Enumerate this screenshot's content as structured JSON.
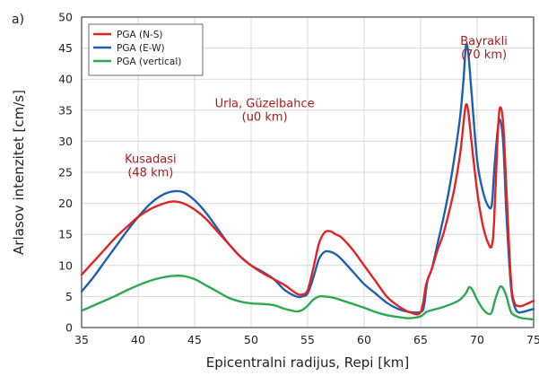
{
  "chart_data": {
    "type": "line",
    "panel_label": "a)",
    "title": "",
    "xlabel": "Epicentralni radijus, Repi [km]",
    "ylabel": "Arlasov intenzitet [cm/s]",
    "xlim": [
      35,
      75
    ],
    "ylim": [
      0,
      50
    ],
    "xticks": [
      35,
      40,
      45,
      50,
      55,
      60,
      65,
      70,
      75
    ],
    "yticks": [
      0,
      5,
      10,
      15,
      20,
      25,
      30,
      35,
      40,
      45,
      50
    ],
    "grid": true,
    "legend_position": "top-left",
    "series": [
      {
        "name": "PGA (N-S)",
        "color": "#e02424",
        "x": [
          35,
          36,
          37,
          38,
          39,
          40,
          41,
          42,
          43,
          44,
          45,
          46,
          47,
          48,
          49,
          50,
          51,
          52,
          53,
          54,
          54.5,
          55,
          55.5,
          56,
          56.5,
          57,
          57.5,
          58,
          59,
          60,
          61,
          62,
          63,
          64,
          65,
          65.5,
          66,
          66.5,
          67,
          67.5,
          68,
          68.5,
          68.8,
          69,
          69.2,
          69.5,
          70,
          70.5,
          71,
          71.3,
          71.5,
          71.8,
          72,
          72.3,
          72.6,
          73,
          73.3,
          73.6,
          74,
          75
        ],
        "values": [
          8.5,
          10.5,
          12.5,
          14.5,
          16.2,
          17.8,
          19.0,
          19.8,
          20.3,
          20.0,
          19.0,
          17.5,
          15.5,
          13.5,
          11.5,
          10.0,
          8.8,
          7.8,
          6.8,
          5.5,
          5.3,
          6.0,
          9.5,
          13.5,
          15.3,
          15.5,
          15.0,
          14.5,
          12.5,
          10.0,
          7.5,
          5.0,
          3.5,
          2.5,
          2.5,
          7.0,
          9.5,
          12.5,
          15.0,
          18.5,
          22.5,
          28.0,
          33.0,
          35.8,
          35.0,
          30.0,
          22.0,
          16.5,
          13.5,
          13.2,
          17.0,
          30.0,
          35.3,
          33.0,
          22.0,
          7.5,
          4.0,
          3.5,
          3.5,
          4.3
        ]
      },
      {
        "name": "PGA (E-W)",
        "color": "#1f5fb0",
        "x": [
          35,
          36,
          37,
          38,
          39,
          40,
          41,
          42,
          43,
          44,
          45,
          46,
          47,
          48,
          49,
          50,
          51,
          52,
          53,
          54,
          54.5,
          55,
          55.5,
          56,
          56.5,
          57,
          57.5,
          58,
          59,
          60,
          61,
          62,
          63,
          64,
          65,
          65.3,
          65.6,
          66,
          66.5,
          67,
          67.5,
          68,
          68.5,
          68.8,
          69,
          69.2,
          69.5,
          70,
          70.5,
          71,
          71.3,
          71.5,
          71.8,
          72,
          72.3,
          72.6,
          73,
          73.3,
          73.6,
          74,
          75
        ],
        "values": [
          5.8,
          8.0,
          10.5,
          13.0,
          15.5,
          17.8,
          19.8,
          21.2,
          21.9,
          21.8,
          20.5,
          18.5,
          16.0,
          13.5,
          11.5,
          10.0,
          9.0,
          7.8,
          6.0,
          5.0,
          5.0,
          5.5,
          8.0,
          11.0,
          12.2,
          12.2,
          11.8,
          11.0,
          9.0,
          7.0,
          5.5,
          4.0,
          3.0,
          2.5,
          2.5,
          3.5,
          7.5,
          9.5,
          13.5,
          17.5,
          22.0,
          27.5,
          34.0,
          40.0,
          45.2,
          44.5,
          38.0,
          27.0,
          22.0,
          19.5,
          19.8,
          25.0,
          31.5,
          33.5,
          30.0,
          18.0,
          6.5,
          3.5,
          2.5,
          2.5,
          3.0
        ]
      },
      {
        "name": "PGA (vertical)",
        "color": "#2ea84f",
        "x": [
          35,
          36,
          37,
          38,
          39,
          40,
          41,
          42,
          43,
          44,
          45,
          46,
          47,
          48,
          49,
          50,
          51,
          52,
          53,
          54,
          54.5,
          55,
          55.5,
          56,
          56.5,
          57,
          57.5,
          58,
          59,
          60,
          61,
          62,
          63,
          64,
          65,
          65.5,
          66,
          67,
          68,
          68.5,
          69,
          69.3,
          69.6,
          70,
          70.5,
          71,
          71.3,
          71.6,
          72,
          72.3,
          72.6,
          73,
          73.5,
          74,
          75
        ],
        "values": [
          2.7,
          3.5,
          4.3,
          5.1,
          6.0,
          6.8,
          7.5,
          8.0,
          8.3,
          8.3,
          7.8,
          6.8,
          5.8,
          4.8,
          4.2,
          3.9,
          3.8,
          3.6,
          3.0,
          2.6,
          2.8,
          3.5,
          4.5,
          5.0,
          5.0,
          4.9,
          4.7,
          4.4,
          3.8,
          3.2,
          2.5,
          2.0,
          1.7,
          1.5,
          1.8,
          2.5,
          2.8,
          3.3,
          4.0,
          4.5,
          5.5,
          6.5,
          6.0,
          4.5,
          3.0,
          2.2,
          2.5,
          4.5,
          6.5,
          6.3,
          5.0,
          2.5,
          1.8,
          1.5,
          1.3
        ]
      }
    ],
    "annotations": [
      {
        "lines": [
          "Bayrakli",
          "(70 km)"
        ],
        "x": 70.6,
        "y": 45.5
      },
      {
        "lines": [
          "Urla, Güzelbahce",
          "(u0 km)"
        ],
        "x": 51.2,
        "y": 35.5
      },
      {
        "lines": [
          "Kusadasi",
          "(48 km)"
        ],
        "x": 41.1,
        "y": 26.5
      }
    ]
  }
}
